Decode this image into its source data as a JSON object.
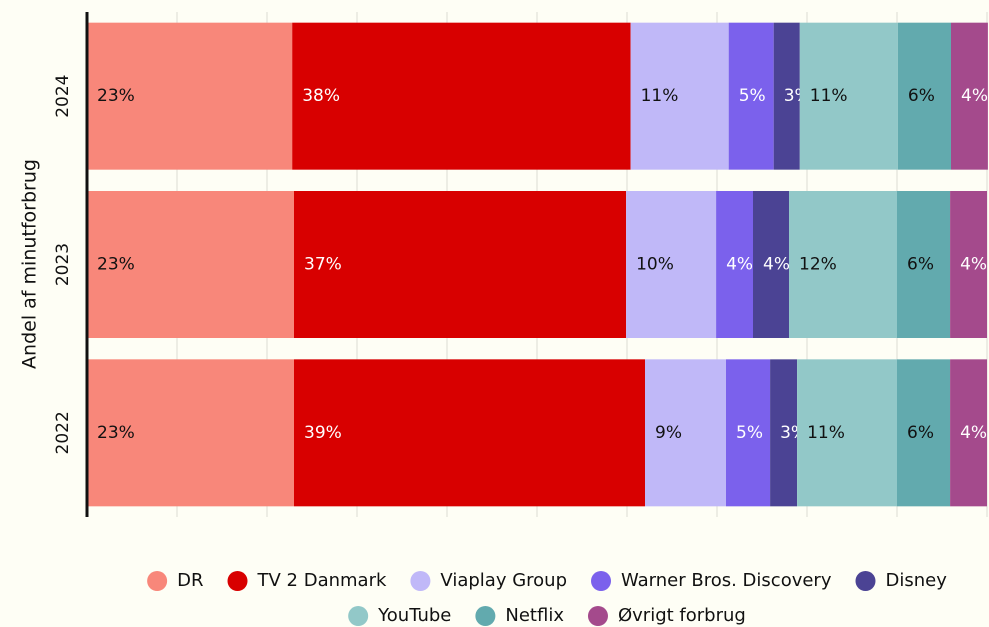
{
  "chart_data": {
    "type": "stacked_barh",
    "ylabel": "Andel af minutforbrug",
    "categories": [
      "2024",
      "2023",
      "2022"
    ],
    "xlim": [
      0,
      100
    ],
    "xticks": [
      0,
      10,
      20,
      30,
      40,
      50,
      60,
      70,
      80,
      90,
      100
    ],
    "grid": true,
    "legend": "bottom",
    "series": [
      {
        "name": "DR",
        "color": "#f8877a",
        "values": [
          22.8,
          23.0,
          23.0
        ],
        "value_labels": [
          "23%",
          "23%",
          "23%"
        ]
      },
      {
        "name": "TV 2 Danmark",
        "color": "#d80000",
        "values": [
          37.6,
          36.9,
          39.0
        ],
        "value_labels": [
          "38%",
          "37%",
          "39%"
        ]
      },
      {
        "name": "Viaplay Group",
        "color": "#c0b8f8",
        "values": [
          10.9,
          10.0,
          9.0
        ],
        "value_labels": [
          "11%",
          "10%",
          "9%"
        ]
      },
      {
        "name": "Warner Bros. Discovery",
        "color": "#7b61ec",
        "values": [
          5.0,
          4.1,
          4.9
        ],
        "value_labels": [
          "5%",
          "4%",
          "5%"
        ]
      },
      {
        "name": "Disney",
        "color": "#4b4394",
        "values": [
          2.9,
          4.0,
          3.0
        ],
        "value_labels": [
          "3%",
          "4%",
          "3%"
        ]
      },
      {
        "name": "YouTube",
        "color": "#92c8c8",
        "values": [
          10.9,
          12.0,
          11.1
        ],
        "value_labels": [
          "11%",
          "12%",
          "11%"
        ]
      },
      {
        "name": "Netflix",
        "color": "#62aaae",
        "values": [
          5.9,
          5.9,
          5.9
        ],
        "value_labels": [
          "6%",
          "6%",
          "6%"
        ]
      },
      {
        "name": "Øvrigt forbrug",
        "color": "#a44a8c",
        "values": [
          4.1,
          4.1,
          4.1
        ],
        "value_labels": [
          "4%",
          "4%",
          "4%"
        ]
      }
    ]
  }
}
